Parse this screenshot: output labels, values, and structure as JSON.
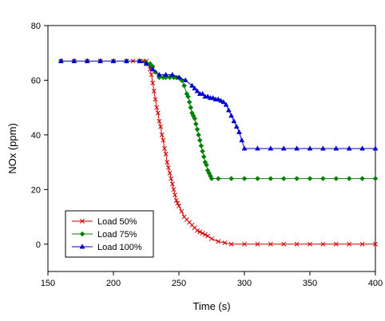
{
  "chart_data": {
    "type": "line",
    "title": "",
    "xlabel": "Time (s)",
    "ylabel": "NOx (ppm)",
    "xlim": [
      150,
      400
    ],
    "ylim": [
      -10,
      80
    ],
    "xticks": [
      "150",
      "200",
      "250",
      "300",
      "350",
      "400"
    ],
    "yticks": [
      "0",
      "20",
      "40",
      "60",
      "80"
    ],
    "grid": false,
    "legend_position": "bottom-left",
    "series": [
      {
        "name": "Load 50%",
        "color": "#cc0000",
        "marker": "x",
        "x": [
          160,
          170,
          180,
          190,
          200,
          210,
          215,
          220,
          223,
          225,
          227,
          228,
          229,
          230,
          231,
          232,
          233,
          234,
          235,
          236,
          237,
          238,
          239,
          240,
          241,
          242,
          243,
          244,
          245,
          246,
          247,
          248,
          249,
          250,
          252,
          254,
          256,
          258,
          260,
          262,
          264,
          266,
          268,
          270,
          272,
          275,
          280,
          285,
          290,
          300,
          310,
          320,
          330,
          340,
          350,
          360,
          370,
          380,
          390,
          400
        ],
        "y": [
          67,
          67,
          67,
          67,
          67,
          67,
          67,
          67,
          67,
          67,
          66,
          64,
          62,
          59,
          56,
          53,
          50,
          48,
          45,
          43,
          40,
          38,
          35,
          33,
          30,
          28,
          26,
          24,
          22,
          20,
          18,
          16,
          15,
          14,
          12,
          10,
          9,
          8,
          7,
          6,
          5,
          4.5,
          4,
          3.5,
          3,
          2,
          1,
          0.5,
          0,
          0,
          0,
          0,
          0,
          0,
          0,
          0,
          0,
          0,
          0,
          0
        ]
      },
      {
        "name": "Load 75%",
        "color": "#008000",
        "marker": "diamond",
        "x": [
          160,
          170,
          180,
          190,
          200,
          210,
          220,
          225,
          228,
          230,
          232,
          235,
          238,
          240,
          243,
          246,
          248,
          250,
          252,
          254,
          256,
          257,
          258,
          259,
          260,
          261,
          262,
          263,
          264,
          265,
          266,
          267,
          268,
          269,
          270,
          271,
          272,
          273,
          274,
          275,
          280,
          290,
          300,
          310,
          320,
          330,
          340,
          350,
          360,
          370,
          380,
          390,
          400
        ],
        "y": [
          67,
          67,
          67,
          67,
          67,
          67,
          67,
          66.5,
          66,
          65,
          63,
          61,
          61,
          61,
          61,
          61,
          61,
          61,
          60,
          58,
          55,
          54,
          52,
          50,
          48,
          47,
          46,
          44,
          42,
          40,
          38,
          36,
          34,
          32,
          30,
          29,
          27,
          26,
          25,
          24,
          24,
          24,
          24,
          24,
          24,
          24,
          24,
          24,
          24,
          24,
          24,
          24,
          24
        ]
      },
      {
        "name": "Load 100%",
        "color": "#0000cc",
        "marker": "triangle",
        "x": [
          160,
          170,
          180,
          190,
          200,
          210,
          220,
          225,
          230,
          235,
          240,
          245,
          250,
          255,
          260,
          262,
          264,
          266,
          268,
          270,
          272,
          274,
          276,
          278,
          280,
          282,
          284,
          286,
          288,
          290,
          292,
          294,
          296,
          298,
          300,
          310,
          320,
          330,
          340,
          350,
          360,
          370,
          380,
          390,
          400
        ],
        "y": [
          67,
          67,
          67,
          67,
          67,
          67,
          67,
          66,
          64,
          62,
          62,
          62,
          61,
          60,
          58,
          57,
          56,
          55,
          55,
          54,
          54,
          53.5,
          53.5,
          53,
          53,
          52.5,
          52,
          51,
          49,
          47,
          45,
          43,
          41,
          38,
          35,
          35,
          35,
          35,
          35,
          35,
          35,
          35,
          35,
          35,
          35
        ]
      }
    ]
  }
}
